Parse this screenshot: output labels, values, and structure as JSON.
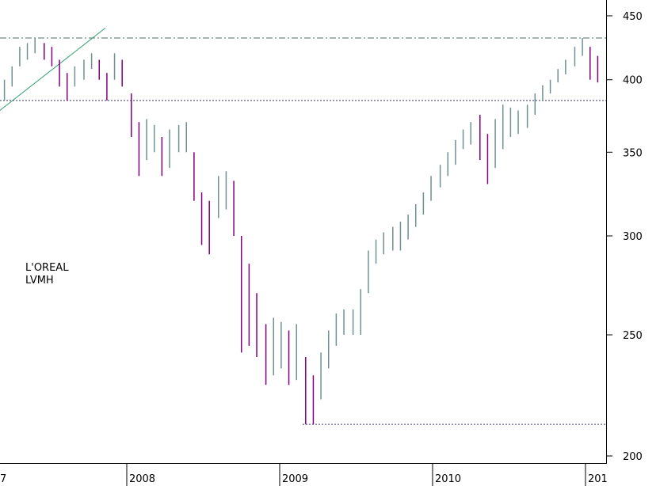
{
  "chart_data": {
    "type": "range_bar",
    "annotations": [
      "L'OREAL",
      "LVMH"
    ],
    "x": [
      2007.2,
      2007.25,
      2007.3,
      2007.35,
      2007.4,
      2007.46,
      2007.51,
      2007.56,
      2007.61,
      2007.66,
      2007.72,
      2007.77,
      2007.82,
      2007.87,
      2007.92,
      2007.97,
      2008.03,
      2008.08,
      2008.13,
      2008.18,
      2008.23,
      2008.28,
      2008.34,
      2008.39,
      2008.44,
      2008.49,
      2008.54,
      2008.6,
      2008.65,
      2008.7,
      2008.75,
      2008.8,
      2008.85,
      2008.91,
      2008.96,
      2009.01,
      2009.06,
      2009.11,
      2009.17,
      2009.22,
      2009.27,
      2009.32,
      2009.37,
      2009.42,
      2009.48,
      2009.53,
      2009.58,
      2009.63,
      2009.68,
      2009.74,
      2009.79,
      2009.84,
      2009.89,
      2009.94,
      2009.99,
      2010.05,
      2010.1,
      2010.15,
      2010.2,
      2010.25,
      2010.31,
      2010.36,
      2010.41,
      2010.46,
      2010.51,
      2010.56,
      2010.62,
      2010.67,
      2010.72,
      2010.77,
      2010.82,
      2010.87,
      2010.93,
      2010.98,
      2011.03,
      2011.08
    ],
    "high": [
      400,
      410,
      425,
      428,
      432,
      428,
      425,
      415,
      405,
      410,
      415,
      420,
      415,
      405,
      420,
      415,
      390,
      370,
      372,
      368,
      360,
      365,
      368,
      370,
      350,
      325,
      320,
      335,
      338,
      332,
      300,
      285,
      270,
      255,
      258,
      256,
      252,
      255,
      240,
      232,
      242,
      252,
      260,
      262,
      262,
      272,
      292,
      298,
      302,
      305,
      308,
      312,
      318,
      325,
      335,
      342,
      350,
      358,
      365,
      370,
      375,
      362,
      372,
      382,
      380,
      378,
      382,
      390,
      396,
      400,
      408,
      415,
      425,
      432,
      425,
      418
    ],
    "low": [
      385,
      395,
      410,
      415,
      420,
      415,
      410,
      395,
      385,
      395,
      400,
      408,
      400,
      385,
      400,
      395,
      360,
      335,
      345,
      350,
      335,
      340,
      350,
      350,
      320,
      295,
      290,
      310,
      315,
      300,
      242,
      245,
      240,
      228,
      232,
      235,
      228,
      230,
      212,
      212,
      222,
      235,
      245,
      250,
      250,
      250,
      270,
      285,
      290,
      292,
      292,
      298,
      305,
      312,
      320,
      328,
      335,
      342,
      352,
      355,
      345,
      330,
      340,
      352,
      360,
      362,
      366,
      375,
      385,
      390,
      398,
      404,
      410,
      418,
      400,
      398
    ],
    "up_color": "#6f9191",
    "down_color": "#800080",
    "reference_lines": [
      {
        "value": 432,
        "style": "dashdot",
        "color": "#556b6b"
      },
      {
        "value": 385,
        "style": "dotted",
        "color": "#333366"
      },
      {
        "value": 212,
        "style": "dotted",
        "color": "#333366",
        "from": 2009.15
      }
    ],
    "trend_line": {
      "x": [
        2007.17,
        2007.86
      ],
      "y": [
        378,
        440
      ],
      "color": "#2e9e6e"
    },
    "log_scale": true,
    "xlim": [
      2007.171,
      2011.135
    ],
    "ylim": [
      197.4,
      463.3
    ],
    "xticks": [
      {
        "value": 2007,
        "label": "7"
      },
      2008,
      2009,
      2010,
      {
        "value": 2011,
        "label": "201"
      }
    ],
    "yticks": [
      200,
      250,
      300,
      350,
      400,
      450
    ]
  }
}
